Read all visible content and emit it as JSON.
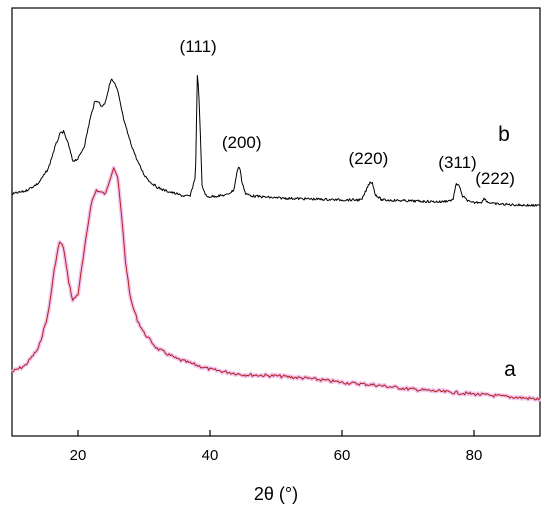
{
  "chart_data": {
    "type": "line",
    "title": "",
    "xlabel": "2θ (°)",
    "ylabel": "",
    "xlim": [
      10,
      90
    ],
    "xticks": [
      20,
      40,
      60,
      80
    ],
    "y_axis_ticks": false,
    "grid": false,
    "legend": "none",
    "series": [
      {
        "name": "b",
        "color": "#000000",
        "x": [
          10,
          12,
          14,
          15.5,
          16.5,
          17.3,
          17.8,
          18.5,
          19.2,
          20,
          21,
          21.8,
          22.5,
          23,
          23.5,
          24,
          24.5,
          25,
          25.5,
          26,
          26.5,
          27,
          28,
          29,
          30,
          31,
          32,
          33,
          34,
          35,
          36,
          37,
          37.8,
          38.1,
          38.4,
          38.8,
          39.5,
          41,
          42.5,
          43.6,
          44.2,
          44.5,
          44.8,
          45.4,
          46.5,
          50,
          55,
          60,
          63,
          64.2,
          64.6,
          65,
          66,
          70,
          75,
          76.8,
          77.3,
          77.7,
          78.2,
          79.5,
          81.2,
          81.6,
          82,
          83,
          86,
          90
        ],
        "y": [
          1.0,
          2.5,
          6.5,
          14.0,
          25.0,
          32.0,
          33.0,
          27.0,
          18.0,
          19.0,
          26.0,
          39.0,
          48.0,
          49.0,
          46.0,
          47.0,
          53.0,
          60.0,
          58.0,
          54.0,
          46.0,
          38.0,
          27.0,
          18.0,
          11.0,
          7.0,
          4.5,
          3.0,
          2.0,
          1.0,
          0.0,
          0.0,
          10.0,
          65.0,
          45.0,
          5.0,
          -0.5,
          0.0,
          0.5,
          3.0,
          14.0,
          15.0,
          8.0,
          1.0,
          0.0,
          -1.0,
          -1.5,
          -2.0,
          -2.0,
          7.0,
          7.0,
          1.0,
          -2.0,
          -2.5,
          -3.0,
          -2.0,
          6.0,
          6.0,
          0.0,
          -3.5,
          -3.0,
          -1.0,
          -3.0,
          -4.0,
          -4.5,
          -5.0
        ]
      },
      {
        "name": "a",
        "color": "#b22222",
        "halo_color": "#f2c6f0",
        "x": [
          10,
          12,
          14,
          15.5,
          16.5,
          17.2,
          17.8,
          18.5,
          19.2,
          20,
          21,
          22,
          22.8,
          23.5,
          24.2,
          24.8,
          25.4,
          26,
          26.6,
          27.2,
          28,
          29,
          30,
          32,
          35,
          40,
          45,
          50,
          55,
          60,
          65,
          70,
          75,
          80,
          85,
          90
        ],
        "y": [
          0.0,
          5.0,
          18.0,
          45.0,
          82.0,
          100.0,
          96.0,
          72.0,
          55.0,
          60.0,
          95.0,
          130.0,
          140.0,
          138.0,
          137.0,
          148.0,
          158.0,
          150.0,
          120.0,
          85.0,
          55.0,
          40.0,
          30.0,
          18.0,
          10.0,
          2.0,
          -2.0,
          -3.0,
          -5.0,
          -8.0,
          -10.0,
          -13.0,
          -15.0,
          -17.0,
          -19.0,
          -21.0
        ]
      }
    ],
    "annotations": [
      {
        "text": "(111)",
        "x": 38.2
      },
      {
        "text": "(200)",
        "x": 44.8
      },
      {
        "text": "(220)",
        "x": 64.0
      },
      {
        "text": "(311)",
        "x": 77.5
      },
      {
        "text": "(222)",
        "x": 83.2
      }
    ]
  }
}
